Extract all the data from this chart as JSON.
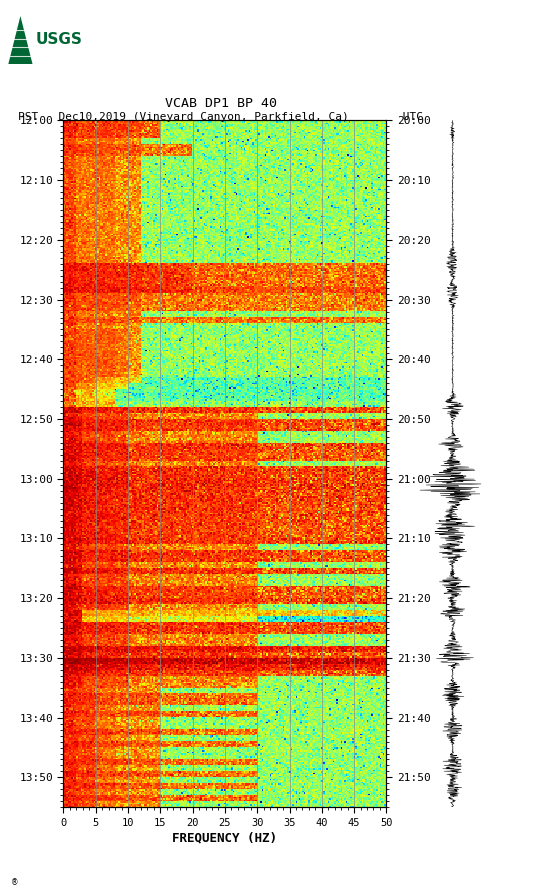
{
  "title_line1": "VCAB DP1 BP 40",
  "title_line2": "PST   Dec10,2019 (Vineyard Canyon, Parkfield, Ca)        UTC",
  "xlabel": "FREQUENCY (HZ)",
  "freq_min": 0,
  "freq_max": 50,
  "left_tick_labels": [
    "12:00",
    "12:10",
    "12:20",
    "12:30",
    "12:40",
    "12:50",
    "13:00",
    "13:10",
    "13:20",
    "13:30",
    "13:40",
    "13:50"
  ],
  "right_tick_labels": [
    "20:00",
    "20:10",
    "20:20",
    "20:30",
    "20:40",
    "20:50",
    "21:00",
    "21:10",
    "21:20",
    "21:30",
    "21:40",
    "21:50"
  ],
  "tick_minutes": [
    0,
    10,
    20,
    30,
    40,
    50,
    60,
    70,
    80,
    90,
    100,
    110
  ],
  "total_minutes": 115,
  "freq_gridlines": [
    5,
    10,
    15,
    20,
    25,
    30,
    35,
    40,
    45
  ],
  "xticks": [
    0,
    5,
    10,
    15,
    20,
    25,
    30,
    35,
    40,
    45,
    50
  ],
  "background_color": "#ffffff",
  "grid_color": "#808080",
  "usgs_green": "#006633",
  "fig_width": 5.52,
  "fig_height": 8.92
}
